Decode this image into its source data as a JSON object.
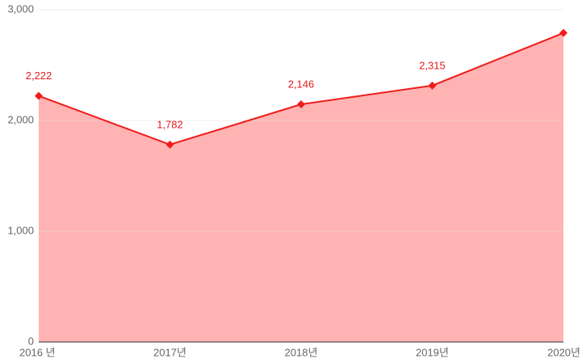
{
  "chart_data": {
    "type": "area",
    "categories": [
      "2016 년",
      "2017년",
      "2018년",
      "2019년",
      "2020년"
    ],
    "series": [
      {
        "name": null,
        "color": "#ee1c1c",
        "fill": "#ffb3b3",
        "values": [
          2222,
          1782,
          2146,
          2315,
          2790
        ],
        "value_labels": [
          "2,222",
          "1,782",
          "2,146",
          "2,315",
          null
        ]
      }
    ],
    "ylim": [
      0,
      3000
    ],
    "yticks": [
      0,
      {
        "value": 1000,
        "label": "1,000"
      },
      {
        "value": 2000,
        "label": "2,000"
      },
      {
        "value": 3000,
        "label": "3,000"
      }
    ],
    "grid": true
  }
}
